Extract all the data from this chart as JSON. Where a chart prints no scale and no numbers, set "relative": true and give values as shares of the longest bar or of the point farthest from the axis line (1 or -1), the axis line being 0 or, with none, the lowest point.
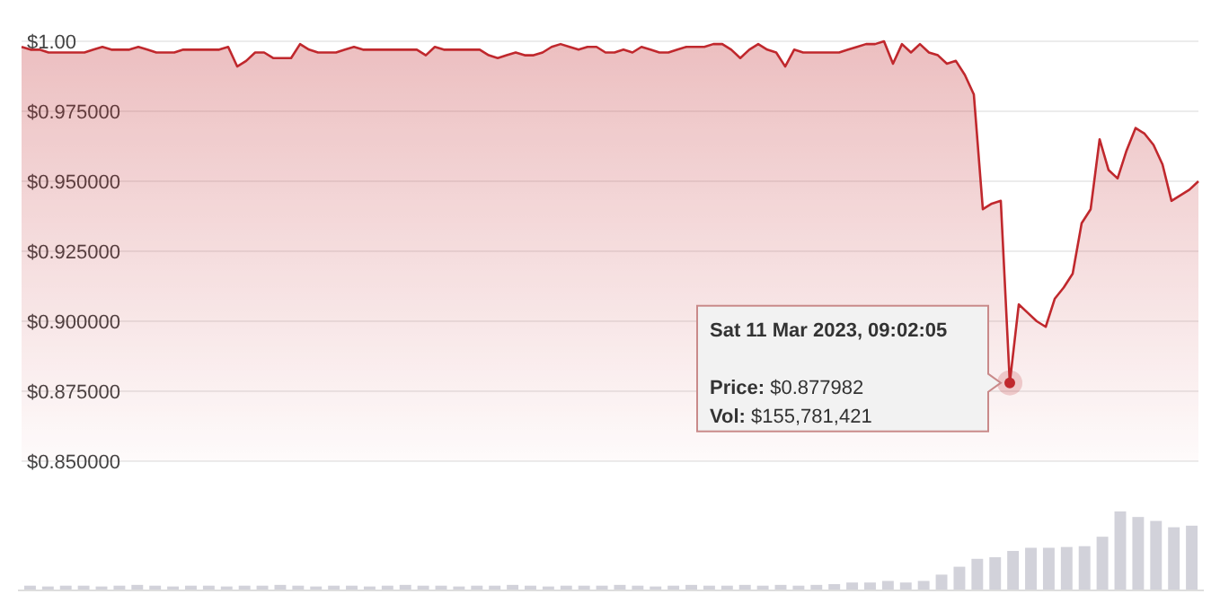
{
  "chart_data": [
    {
      "type": "area",
      "categories": [
        null,
        null,
        null,
        null,
        null,
        null,
        null,
        null,
        null,
        null,
        null,
        null,
        null,
        null,
        null,
        null,
        null,
        null,
        null,
        null,
        null,
        null,
        null,
        null,
        null,
        null,
        null,
        null,
        null,
        null,
        null,
        null,
        null,
        null,
        null,
        null,
        null,
        null,
        null,
        null,
        null,
        null,
        null,
        null,
        null,
        null,
        null,
        null,
        null,
        null,
        null,
        null,
        null,
        null,
        null,
        null,
        null,
        null,
        null,
        null,
        null,
        null,
        null,
        null,
        null,
        null,
        null,
        null,
        null,
        null,
        null,
        null,
        null,
        null,
        null,
        null,
        null,
        null,
        null,
        null,
        null,
        null,
        null,
        null,
        null,
        null,
        null,
        null,
        null,
        null,
        null,
        null,
        null,
        null,
        null,
        null,
        null,
        null,
        null,
        null,
        null,
        null,
        null,
        null,
        null,
        null,
        null,
        null,
        null,
        null,
        null,
        null,
        null,
        null,
        null,
        null,
        null,
        null,
        null,
        null,
        null,
        null,
        null,
        null,
        null,
        null,
        null,
        null,
        null,
        null,
        null,
        null
      ],
      "series": [
        {
          "color": "#c0282d",
          "values": [
            0.998,
            0.997,
            0.997,
            0.996,
            0.996,
            0.996,
            0.996,
            0.996,
            0.997,
            0.998,
            0.997,
            0.997,
            0.997,
            0.998,
            0.997,
            0.996,
            0.996,
            0.996,
            0.997,
            0.997,
            0.997,
            0.997,
            0.997,
            0.998,
            0.991,
            0.993,
            0.996,
            0.996,
            0.994,
            0.994,
            0.994,
            0.999,
            0.997,
            0.996,
            0.996,
            0.996,
            0.997,
            0.998,
            0.997,
            0.997,
            0.997,
            0.997,
            0.997,
            0.997,
            0.997,
            0.995,
            0.998,
            0.997,
            0.997,
            0.997,
            0.997,
            0.997,
            0.995,
            0.994,
            0.995,
            0.996,
            0.995,
            0.995,
            0.996,
            0.998,
            0.999,
            0.998,
            0.997,
            0.998,
            0.998,
            0.996,
            0.996,
            0.997,
            0.996,
            0.998,
            0.997,
            0.996,
            0.996,
            0.997,
            0.998,
            0.998,
            0.998,
            0.999,
            0.999,
            0.997,
            0.994,
            0.997,
            0.999,
            0.997,
            0.996,
            0.991,
            0.997,
            0.996,
            0.996,
            0.996,
            0.996,
            0.996,
            0.997,
            0.998,
            0.999,
            0.999,
            1.0,
            0.992,
            0.999,
            0.996,
            0.999,
            0.996,
            0.995,
            0.992,
            0.993,
            0.988,
            0.981,
            0.94,
            0.942,
            0.943,
            0.878,
            0.906,
            0.903,
            0.9,
            0.898,
            0.908,
            0.912,
            0.917,
            0.935,
            0.94,
            0.965,
            0.954,
            0.951,
            0.961,
            0.969,
            0.967,
            0.963,
            0.956,
            0.943,
            0.945,
            0.947,
            0.95
          ]
        }
      ],
      "ylim": [
        0.85,
        1.0
      ],
      "yticks": [
        {
          "value": 1,
          "label": "$1.00"
        },
        {
          "value": 0.975,
          "label": "$0.975000"
        },
        {
          "value": 0.95,
          "label": "$0.950000"
        },
        {
          "value": 0.925,
          "label": "$0.925000"
        },
        {
          "value": 0.9,
          "label": "$0.900000"
        },
        {
          "value": 0.875,
          "label": "$0.875000"
        },
        {
          "value": 0.85,
          "label": "$0.850000"
        }
      ],
      "grid": "y",
      "annotations": [
        "Sat 11 Mar 2023, 09:02:05",
        "Price: $0.877982",
        "Vol: $155,781,421"
      ]
    },
    {
      "type": "bar",
      "relative": true,
      "color": "#d2d2da",
      "categories": [
        null,
        null,
        null,
        null,
        null,
        null,
        null,
        null,
        null,
        null,
        null,
        null,
        null,
        null,
        null,
        null,
        null,
        null,
        null,
        null,
        null,
        null,
        null,
        null,
        null,
        null,
        null,
        null,
        null,
        null,
        null,
        null,
        null,
        null,
        null,
        null,
        null,
        null,
        null,
        null,
        null,
        null,
        null,
        null,
        null,
        null,
        null,
        null,
        null,
        null,
        null,
        null,
        null,
        null,
        null,
        null,
        null,
        null,
        null,
        null,
        null,
        null,
        null,
        null,
        null,
        null
      ],
      "values": [
        0.06,
        0.05,
        0.06,
        0.06,
        0.05,
        0.06,
        0.07,
        0.06,
        0.05,
        0.06,
        0.06,
        0.05,
        0.06,
        0.06,
        0.07,
        0.06,
        0.05,
        0.06,
        0.06,
        0.05,
        0.06,
        0.07,
        0.06,
        0.06,
        0.05,
        0.06,
        0.06,
        0.07,
        0.06,
        0.05,
        0.06,
        0.06,
        0.06,
        0.07,
        0.06,
        0.05,
        0.06,
        0.07,
        0.06,
        0.06,
        0.07,
        0.06,
        0.07,
        0.06,
        0.07,
        0.08,
        0.1,
        0.1,
        0.12,
        0.1,
        0.12,
        0.2,
        0.3,
        0.4,
        0.42,
        0.5,
        0.54,
        0.54,
        0.55,
        0.56,
        0.68,
        1,
        0.93,
        0.88,
        0.8,
        0.82
      ]
    }
  ]
}
